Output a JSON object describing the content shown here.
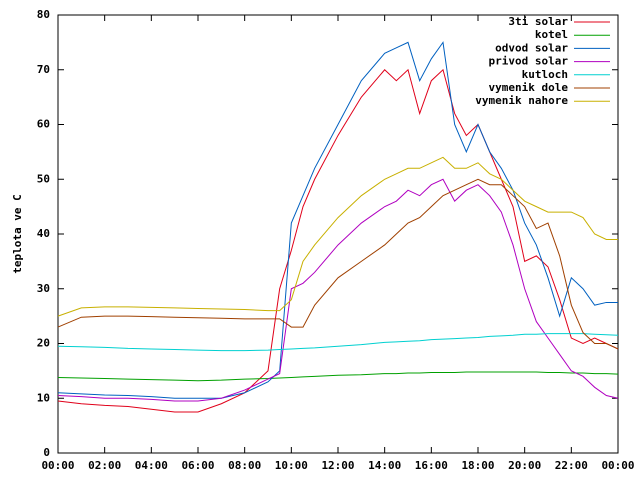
{
  "chart_data": {
    "type": "line",
    "ylabel": "teplota ve C",
    "x": [
      0,
      1,
      2,
      3,
      4,
      5,
      6,
      7,
      8,
      9,
      9.5,
      10,
      10.5,
      11,
      12,
      13,
      14,
      14.5,
      15,
      15.5,
      16,
      16.5,
      17,
      17.5,
      18,
      18.5,
      19,
      19.5,
      20,
      20.5,
      21,
      21.5,
      22,
      22.5,
      23,
      23.5,
      24
    ],
    "xlim": [
      0,
      24
    ],
    "xticks": [
      {
        "value": 0,
        "label": "00:00"
      },
      {
        "value": 2,
        "label": "02:00"
      },
      {
        "value": 4,
        "label": "04:00"
      },
      {
        "value": 6,
        "label": "06:00"
      },
      {
        "value": 8,
        "label": "08:00"
      },
      {
        "value": 10,
        "label": "10:00"
      },
      {
        "value": 12,
        "label": "12:00"
      },
      {
        "value": 14,
        "label": "14:00"
      },
      {
        "value": 16,
        "label": "16:00"
      },
      {
        "value": 18,
        "label": "18:00"
      },
      {
        "value": 20,
        "label": "20:00"
      },
      {
        "value": 22,
        "label": "22:00"
      },
      {
        "value": 24,
        "label": "00:00"
      }
    ],
    "ylim": [
      0,
      80
    ],
    "yticks": [
      0,
      10,
      20,
      30,
      40,
      50,
      60,
      70,
      80
    ],
    "grid": false,
    "legend": "top-right",
    "series": [
      {
        "name": "3ti solar",
        "color": "#e0001a",
        "values": [
          9.5,
          9,
          8.7,
          8.5,
          8,
          7.5,
          7.5,
          9,
          11,
          15,
          30,
          37,
          45,
          50,
          58,
          65,
          70,
          68,
          70,
          62,
          68,
          70,
          62,
          58,
          60,
          55,
          50,
          45,
          35,
          36,
          34,
          28,
          21,
          20,
          21,
          20,
          19
        ]
      },
      {
        "name": "kotel",
        "color": "#00a000",
        "values": [
          13.8,
          13.7,
          13.6,
          13.5,
          13.4,
          13.3,
          13.2,
          13.3,
          13.5,
          13.6,
          13.7,
          13.8,
          13.9,
          14,
          14.2,
          14.3,
          14.5,
          14.5,
          14.6,
          14.6,
          14.7,
          14.7,
          14.7,
          14.8,
          14.8,
          14.8,
          14.8,
          14.8,
          14.8,
          14.8,
          14.7,
          14.7,
          14.6,
          14.6,
          14.5,
          14.5,
          14.4
        ]
      },
      {
        "name": "odvod solar",
        "color": "#0060c0",
        "values": [
          11,
          10.8,
          10.6,
          10.5,
          10.3,
          10,
          10,
          10,
          11,
          13,
          15,
          42,
          47,
          52,
          60,
          68,
          73,
          74,
          75,
          68,
          72,
          75,
          60,
          55,
          60,
          55,
          52,
          48,
          42,
          38,
          32,
          25,
          32,
          30,
          27,
          27.5,
          27.5
        ]
      },
      {
        "name": "privod solar",
        "color": "#b000c0",
        "values": [
          10.5,
          10.3,
          10,
          10,
          9.8,
          9.5,
          9.5,
          10,
          11.5,
          13.5,
          14.5,
          30,
          31,
          33,
          38,
          42,
          45,
          46,
          48,
          47,
          49,
          50,
          46,
          48,
          49,
          47,
          44,
          38,
          30,
          24,
          21,
          18,
          15,
          14,
          12,
          10.5,
          10
        ]
      },
      {
        "name": "kutloch",
        "color": "#00d0d0",
        "values": [
          19.5,
          19.4,
          19.3,
          19.1,
          19,
          18.9,
          18.8,
          18.7,
          18.7,
          18.8,
          18.9,
          19,
          19.1,
          19.2,
          19.5,
          19.8,
          20.2,
          20.3,
          20.4,
          20.5,
          20.7,
          20.8,
          20.9,
          21,
          21.1,
          21.3,
          21.4,
          21.5,
          21.7,
          21.7,
          21.8,
          21.8,
          21.8,
          21.8,
          21.7,
          21.6,
          21.5
        ]
      },
      {
        "name": "vymenik dole",
        "color": "#a04000",
        "values": [
          23,
          24.8,
          25,
          25,
          24.9,
          24.8,
          24.7,
          24.6,
          24.5,
          24.5,
          24.5,
          23,
          23,
          27,
          32,
          35,
          38,
          40,
          42,
          43,
          45,
          47,
          48,
          49,
          50,
          49,
          49,
          47,
          45,
          41,
          42,
          36,
          27,
          22,
          20,
          20,
          19
        ]
      },
      {
        "name": "vymenik nahore",
        "color": "#c8b000",
        "values": [
          25,
          26.5,
          26.7,
          26.7,
          26.6,
          26.5,
          26.4,
          26.3,
          26.2,
          26,
          26,
          28,
          35,
          38,
          43,
          47,
          50,
          51,
          52,
          52,
          53,
          54,
          52,
          52,
          53,
          51,
          50,
          48,
          46,
          45,
          44,
          44,
          44,
          43,
          40,
          39,
          39
        ]
      }
    ]
  }
}
